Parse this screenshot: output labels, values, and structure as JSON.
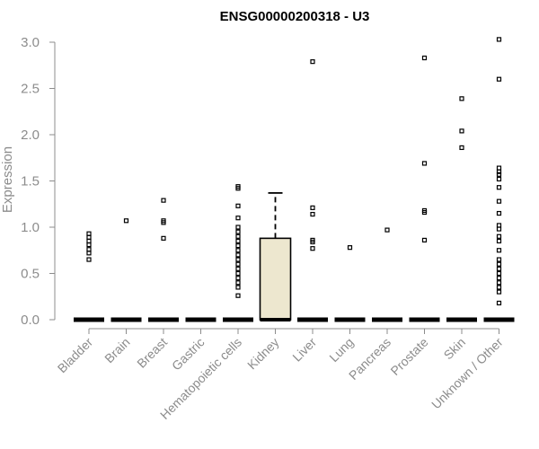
{
  "chart_data": {
    "type": "boxplot",
    "title": "ENSG00000200318 - U3",
    "xlabel": "",
    "ylabel": "Expression",
    "ylim": [
      0,
      3.0
    ],
    "yticks": [
      "0.0",
      "0.5",
      "1.0",
      "1.5",
      "2.0",
      "2.5",
      "3.0"
    ],
    "grid": false,
    "box_fill": "#ede7cf",
    "categories": [
      {
        "name": "Bladder",
        "box": [
          0,
          0,
          0,
          0,
          0
        ],
        "outliers": [
          0.65,
          0.72,
          0.76,
          0.81,
          0.85,
          0.89,
          0.93
        ]
      },
      {
        "name": "Brain",
        "box": [
          0,
          0,
          0,
          0,
          0
        ],
        "outliers": [
          1.07
        ]
      },
      {
        "name": "Breast",
        "box": [
          0,
          0,
          0,
          0,
          0
        ],
        "outliers": [
          0.88,
          1.05,
          1.07,
          1.29
        ]
      },
      {
        "name": "Gastric",
        "box": [
          0,
          0,
          0,
          0,
          0
        ],
        "outliers": []
      },
      {
        "name": "Hematopoietic cells",
        "box": [
          0,
          0,
          0,
          0,
          0
        ],
        "outliers": [
          0.26,
          0.35,
          0.4,
          0.45,
          0.5,
          0.55,
          0.6,
          0.65,
          0.7,
          0.75,
          0.8,
          0.85,
          0.9,
          0.95,
          1.0,
          1.1,
          1.23,
          1.42,
          1.44
        ]
      },
      {
        "name": "Kidney",
        "box": [
          0,
          0,
          0,
          0.88,
          1.37
        ],
        "outliers": []
      },
      {
        "name": "Liver",
        "box": [
          0,
          0,
          0,
          0,
          0
        ],
        "outliers": [
          0.77,
          0.84,
          0.86,
          1.14,
          1.21,
          2.79
        ]
      },
      {
        "name": "Lung",
        "box": [
          0,
          0,
          0,
          0,
          0
        ],
        "outliers": [
          0.78
        ]
      },
      {
        "name": "Pancreas",
        "box": [
          0,
          0,
          0,
          0,
          0
        ],
        "outliers": [
          0.97
        ]
      },
      {
        "name": "Prostate",
        "box": [
          0,
          0,
          0,
          0,
          0
        ],
        "outliers": [
          0.86,
          1.16,
          1.18,
          1.69,
          2.83
        ]
      },
      {
        "name": "Skin",
        "box": [
          0,
          0,
          0,
          0,
          0
        ],
        "outliers": [
          1.86,
          2.04,
          2.39
        ]
      },
      {
        "name": "Unknown / Other",
        "box": [
          0,
          0,
          0,
          0,
          0
        ],
        "outliers": [
          0.18,
          0.3,
          0.35,
          0.4,
          0.45,
          0.5,
          0.55,
          0.6,
          0.65,
          0.75,
          0.85,
          0.9,
          0.98,
          1.02,
          1.15,
          1.28,
          1.43,
          1.52,
          1.57,
          1.6,
          1.64,
          2.6,
          3.03
        ]
      }
    ]
  }
}
